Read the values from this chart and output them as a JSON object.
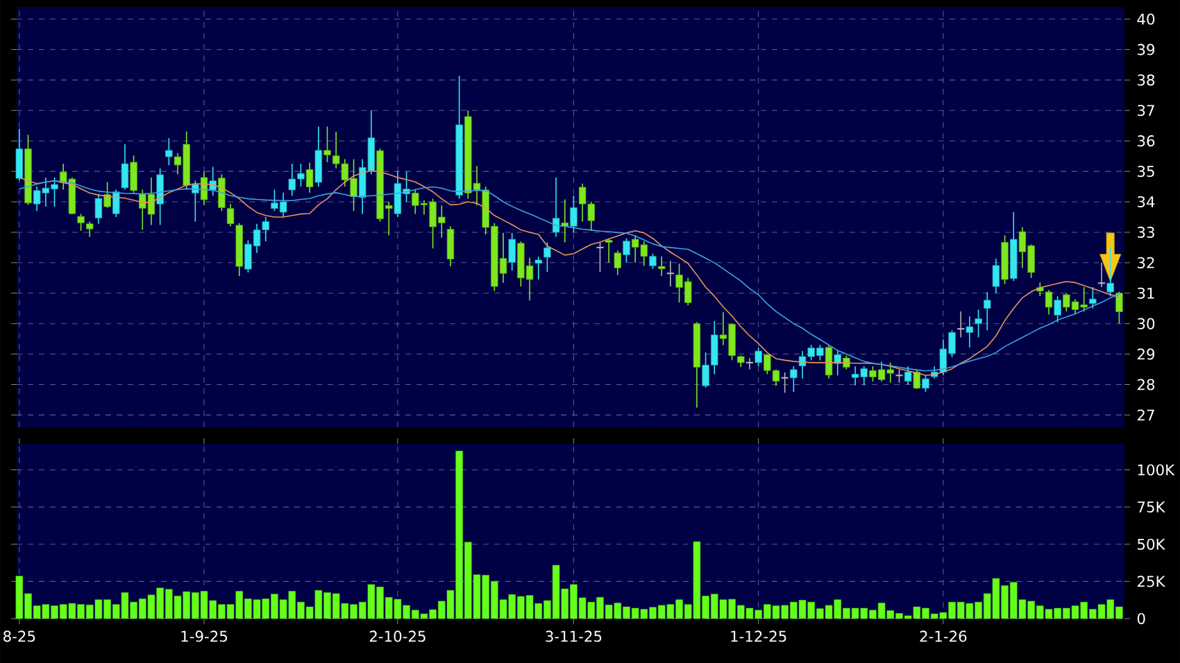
{
  "chart_data": [
    {
      "type": "candlestick",
      "categories": [
        null,
        null,
        null,
        null,
        null,
        null,
        null,
        null,
        null,
        null,
        null,
        null,
        null,
        null,
        null,
        null,
        null,
        null,
        null,
        null,
        null,
        null,
        null,
        null,
        null,
        null,
        null,
        null,
        null,
        null,
        null,
        null,
        null,
        null,
        null,
        null,
        null,
        null,
        null,
        null,
        null,
        null,
        null,
        null,
        null,
        null,
        null,
        null,
        null,
        null,
        null,
        null,
        null,
        null,
        null,
        null,
        null,
        null,
        null,
        null,
        null,
        null,
        null,
        null,
        null,
        null,
        null,
        null,
        null,
        null,
        null,
        null,
        null,
        null,
        null,
        null,
        null,
        null,
        null,
        null,
        null,
        null,
        null,
        null,
        null,
        null,
        null,
        null,
        null,
        null,
        null,
        null,
        null,
        null,
        null,
        null,
        null,
        null,
        null,
        null,
        null,
        null,
        null,
        null,
        null,
        null,
        null,
        null,
        null,
        null,
        null,
        null,
        null,
        null,
        null,
        null,
        null,
        null,
        null,
        null,
        null,
        null,
        null,
        null,
        null,
        null
      ],
      "ohlc": [
        [
          34.77,
          36.4,
          34.7,
          35.74
        ],
        [
          35.74,
          36.2,
          33.9,
          33.96
        ],
        [
          33.93,
          34.5,
          33.7,
          34.37
        ],
        [
          34.29,
          34.8,
          33.84,
          34.45
        ],
        [
          34.42,
          34.8,
          33.84,
          34.57
        ],
        [
          34.98,
          35.25,
          34.4,
          34.63
        ],
        [
          34.75,
          34.8,
          33.6,
          33.61
        ],
        [
          33.52,
          33.6,
          33.05,
          33.31
        ],
        [
          33.28,
          33.35,
          32.85,
          33.11
        ],
        [
          33.47,
          34.27,
          33.28,
          34.11
        ],
        [
          34.24,
          34.65,
          33.8,
          33.84
        ],
        [
          33.61,
          34.4,
          33.5,
          34.33
        ],
        [
          34.46,
          35.89,
          34.4,
          35.25
        ],
        [
          35.3,
          35.52,
          34.3,
          34.37
        ],
        [
          34.25,
          34.4,
          33.08,
          33.79
        ],
        [
          34.25,
          34.8,
          33.24,
          33.59
        ],
        [
          33.93,
          35.1,
          33.24,
          34.89
        ],
        [
          35.48,
          36.09,
          35.2,
          35.69
        ],
        [
          35.48,
          35.6,
          34.9,
          35.21
        ],
        [
          35.89,
          36.31,
          34.4,
          34.54
        ],
        [
          34.29,
          34.7,
          33.35,
          34.57
        ],
        [
          34.8,
          35.0,
          33.9,
          34.07
        ],
        [
          34.39,
          35.15,
          34.2,
          34.69
        ],
        [
          34.78,
          34.9,
          33.7,
          33.81
        ],
        [
          33.78,
          33.93,
          33.2,
          33.28
        ],
        [
          33.23,
          33.3,
          31.56,
          31.88
        ],
        [
          31.79,
          32.74,
          31.68,
          32.61
        ],
        [
          32.55,
          33.28,
          32.32,
          33.08
        ],
        [
          33.08,
          33.5,
          32.7,
          33.35
        ],
        [
          33.78,
          34.4,
          33.7,
          33.96
        ],
        [
          33.66,
          34.3,
          33.5,
          34.0
        ],
        [
          34.39,
          35.25,
          34.2,
          34.75
        ],
        [
          34.75,
          35.25,
          34.5,
          34.93
        ],
        [
          35.06,
          35.28,
          34.3,
          34.49
        ],
        [
          34.64,
          36.47,
          34.5,
          35.69
        ],
        [
          35.69,
          36.47,
          35.3,
          35.54
        ],
        [
          35.51,
          36.3,
          35.1,
          35.25
        ],
        [
          35.25,
          35.4,
          34.5,
          34.72
        ],
        [
          34.77,
          35.4,
          33.7,
          34.17
        ],
        [
          34.14,
          35.4,
          33.6,
          35.13
        ],
        [
          35.02,
          37.0,
          34.9,
          36.1
        ],
        [
          35.68,
          35.75,
          33.35,
          33.44
        ],
        [
          33.88,
          34.0,
          32.9,
          33.78
        ],
        [
          33.61,
          35.0,
          33.5,
          34.6
        ],
        [
          34.26,
          35.0,
          34.0,
          34.42
        ],
        [
          34.29,
          34.4,
          33.6,
          33.88
        ],
        [
          33.95,
          34.05,
          33.58,
          33.9
        ],
        [
          34.0,
          34.1,
          32.47,
          33.18
        ],
        [
          33.5,
          33.88,
          32.82,
          33.31
        ],
        [
          33.1,
          33.2,
          31.88,
          32.12
        ],
        [
          34.22,
          38.14,
          34.1,
          36.53
        ],
        [
          36.8,
          37.0,
          34.1,
          34.29
        ],
        [
          34.61,
          35.18,
          33.88,
          34.39
        ],
        [
          34.39,
          34.5,
          32.93,
          33.16
        ],
        [
          33.2,
          33.3,
          31.07,
          31.22
        ],
        [
          32.14,
          32.98,
          31.34,
          31.65
        ],
        [
          32.01,
          32.98,
          31.74,
          32.77
        ],
        [
          32.64,
          32.7,
          31.22,
          31.5
        ],
        [
          31.9,
          32.17,
          30.76,
          31.45
        ],
        [
          31.98,
          32.2,
          31.45,
          32.09
        ],
        [
          32.18,
          32.67,
          31.7,
          32.49
        ],
        [
          33.0,
          34.8,
          32.85,
          33.46
        ],
        [
          33.31,
          34.08,
          32.67,
          33.2
        ],
        [
          33.2,
          34.2,
          33.0,
          33.81
        ],
        [
          34.48,
          34.6,
          33.35,
          33.93
        ],
        [
          33.93,
          34.0,
          33.05,
          33.38
        ],
        [
          32.5,
          32.67,
          31.7,
          32.5
        ],
        [
          32.74,
          32.8,
          32.0,
          32.67
        ],
        [
          32.32,
          32.4,
          31.6,
          31.83
        ],
        [
          32.26,
          32.8,
          32.0,
          32.71
        ],
        [
          32.77,
          32.9,
          32.0,
          32.51
        ],
        [
          32.59,
          32.7,
          31.9,
          32.21
        ],
        [
          31.9,
          32.3,
          31.8,
          32.21
        ],
        [
          31.88,
          32.21,
          31.56,
          31.8
        ],
        [
          31.65,
          32.06,
          31.22,
          31.65
        ],
        [
          31.6,
          31.97,
          30.69,
          31.19
        ],
        [
          31.38,
          31.5,
          30.6,
          30.69
        ],
        [
          30.0,
          30.05,
          27.24,
          28.57
        ],
        [
          27.96,
          29.05,
          27.9,
          28.64
        ],
        [
          28.64,
          30.08,
          28.34,
          29.63
        ],
        [
          29.63,
          30.38,
          29.3,
          29.51
        ],
        [
          29.98,
          30.0,
          28.8,
          28.95
        ],
        [
          28.92,
          28.95,
          28.57,
          28.72
        ],
        [
          28.72,
          28.87,
          28.5,
          28.72
        ],
        [
          28.72,
          29.2,
          28.6,
          29.1
        ],
        [
          28.98,
          29.0,
          28.34,
          28.46
        ],
        [
          28.46,
          28.5,
          27.96,
          28.11
        ],
        [
          28.22,
          28.4,
          27.73,
          28.22
        ],
        [
          28.22,
          28.6,
          27.76,
          28.49
        ],
        [
          28.61,
          29.1,
          28.2,
          28.92
        ],
        [
          28.92,
          29.3,
          28.8,
          29.2
        ],
        [
          28.95,
          29.3,
          28.8,
          29.2
        ],
        [
          29.22,
          29.3,
          28.2,
          28.31
        ],
        [
          28.69,
          29.1,
          28.3,
          28.98
        ],
        [
          28.87,
          28.95,
          28.5,
          28.57
        ],
        [
          28.23,
          28.6,
          27.97,
          28.34
        ],
        [
          28.25,
          28.6,
          27.97,
          28.52
        ],
        [
          28.46,
          28.6,
          28.1,
          28.25
        ],
        [
          28.49,
          28.75,
          28.1,
          28.16
        ],
        [
          28.49,
          28.72,
          28.06,
          28.37
        ],
        [
          28.3,
          28.5,
          28.06,
          28.3
        ],
        [
          28.11,
          28.6,
          28.0,
          28.41
        ],
        [
          28.41,
          28.5,
          27.85,
          27.88
        ],
        [
          27.88,
          28.3,
          27.76,
          28.19
        ],
        [
          28.26,
          28.6,
          28.2,
          28.41
        ],
        [
          28.41,
          29.48,
          28.3,
          29.17
        ],
        [
          29.02,
          29.78,
          28.9,
          29.71
        ],
        [
          29.83,
          30.4,
          29.55,
          29.83
        ],
        [
          29.71,
          30.24,
          29.22,
          29.9
        ],
        [
          30.0,
          30.46,
          29.55,
          30.16
        ],
        [
          30.5,
          31.03,
          29.78,
          30.77
        ],
        [
          31.22,
          32.14,
          31.0,
          31.91
        ],
        [
          32.67,
          32.9,
          31.3,
          31.45
        ],
        [
          31.48,
          33.66,
          31.4,
          32.77
        ],
        [
          33.02,
          33.17,
          31.83,
          32.36
        ],
        [
          32.56,
          32.6,
          31.5,
          31.68
        ],
        [
          31.18,
          31.35,
          30.9,
          31.07
        ],
        [
          31.04,
          31.1,
          30.3,
          30.54
        ],
        [
          30.28,
          30.9,
          30.04,
          30.77
        ],
        [
          30.95,
          31.0,
          30.4,
          30.54
        ],
        [
          30.72,
          30.8,
          30.3,
          30.46
        ],
        [
          30.62,
          31.2,
          30.4,
          30.54
        ],
        [
          30.66,
          31.2,
          30.5,
          30.81
        ],
        [
          31.33,
          32.0,
          31.2,
          31.33
        ],
        [
          31.04,
          32.52,
          30.9,
          31.33
        ],
        [
          31.0,
          31.05,
          30.0,
          30.39
        ]
      ],
      "colors": [
        "#33e6f2",
        "#7ee81e",
        "#33e6f2",
        "#33e6f2",
        "#33e6f2",
        "#7ee81e",
        "#7ee81e",
        "#7ee81e",
        "#7ee81e",
        "#33e6f2",
        "#7ee81e",
        "#33e6f2",
        "#33e6f2",
        "#7ee81e",
        "#7ee81e",
        "#7ee81e",
        "#33e6f2",
        "#33e6f2",
        "#7ee81e",
        "#7ee81e",
        "#33e6f2",
        "#7ee81e",
        "#33e6f2",
        "#7ee81e",
        "#7ee81e",
        "#7ee81e",
        "#33e6f2",
        "#33e6f2",
        "#33e6f2",
        "#33e6f2",
        "#33e6f2",
        "#33e6f2",
        "#33e6f2",
        "#7ee81e",
        "#33e6f2",
        "#7ee81e",
        "#7ee81e",
        "#7ee81e",
        "#7ee81e",
        "#33e6f2",
        "#33e6f2",
        "#7ee81e",
        "#7ee81e",
        "#33e6f2",
        "#33e6f2",
        "#7ee81e",
        "#7ee81e",
        "#7ee81e",
        "#7ee81e",
        "#7ee81e",
        "#33e6f2",
        "#7ee81e",
        "#7ee81e",
        "#7ee81e",
        "#7ee81e",
        "#7ee81e",
        "#33e6f2",
        "#7ee81e",
        "#7ee81e",
        "#33e6f2",
        "#33e6f2",
        "#33e6f2",
        "#7ee81e",
        "#33e6f2",
        "#7ee81e",
        "#7ee81e",
        "#b4b4b4",
        "#7ee81e",
        "#7ee81e",
        "#33e6f2",
        "#7ee81e",
        "#7ee81e",
        "#33e6f2",
        "#7ee81e",
        "#b4b4b4",
        "#7ee81e",
        "#7ee81e",
        "#7ee81e",
        "#33e6f2",
        "#33e6f2",
        "#7ee81e",
        "#7ee81e",
        "#7ee81e",
        "#b4b4b4",
        "#33e6f2",
        "#7ee81e",
        "#7ee81e",
        "#b4b4b4",
        "#33e6f2",
        "#33e6f2",
        "#33e6f2",
        "#33e6f2",
        "#7ee81e",
        "#33e6f2",
        "#7ee81e",
        "#33e6f2",
        "#33e6f2",
        "#7ee81e",
        "#7ee81e",
        "#7ee81e",
        "#b4b4b4",
        "#33e6f2",
        "#7ee81e",
        "#33e6f2",
        "#33e6f2",
        "#33e6f2",
        "#33e6f2",
        "#b4b4b4",
        "#33e6f2",
        "#33e6f2",
        "#33e6f2",
        "#33e6f2",
        "#7ee81e",
        "#33e6f2",
        "#7ee81e",
        "#7ee81e",
        "#7ee81e",
        "#7ee81e",
        "#33e6f2",
        "#7ee81e",
        "#7ee81e",
        "#7ee81e",
        "#33e6f2",
        "#b4b4b4",
        "#33e6f2",
        "#7ee81e"
      ],
      "series": [
        {
          "type": "line",
          "color": "#e8955a",
          "values": [
            34.8,
            34.69,
            34.6,
            34.65,
            34.69,
            34.63,
            34.57,
            34.43,
            34.29,
            34.22,
            34.18,
            34.15,
            34.12,
            34.05,
            33.98,
            33.98,
            34.15,
            34.3,
            34.42,
            34.55,
            34.6,
            34.58,
            34.57,
            34.45,
            34.3,
            34.1,
            33.85,
            33.65,
            33.55,
            33.5,
            33.5,
            33.55,
            33.6,
            33.62,
            33.9,
            34.1,
            34.4,
            34.65,
            34.85,
            34.95,
            35.02,
            34.98,
            34.9,
            34.8,
            34.73,
            34.65,
            34.5,
            34.33,
            34.1,
            33.9,
            33.92,
            34.0,
            33.95,
            33.8,
            33.55,
            33.4,
            33.25,
            33.08,
            33.0,
            32.93,
            32.55,
            32.4,
            32.25,
            32.3,
            32.45,
            32.6,
            32.68,
            32.78,
            32.88,
            32.98,
            33.05,
            32.98,
            32.8,
            32.55,
            32.35,
            32.17,
            31.98,
            31.6,
            31.2,
            30.9,
            30.55,
            30.25,
            29.9,
            29.6,
            29.35,
            29.05,
            28.85,
            28.8,
            28.76,
            28.74,
            28.72,
            28.72,
            28.72,
            28.72,
            28.71,
            28.7,
            28.7,
            28.69,
            28.66,
            28.6,
            28.52,
            28.45,
            28.38,
            28.3,
            28.33,
            28.41,
            28.52,
            28.7,
            28.85,
            29.05,
            29.25,
            29.6,
            30.1,
            30.5,
            30.85,
            31.05,
            31.18,
            31.25,
            31.32,
            31.38,
            31.35,
            31.25,
            31.15,
            31.05,
            30.95,
            30.9
          ]
        },
        {
          "type": "line",
          "color": "#3aa4e8",
          "values": [
            34.42,
            34.5,
            34.58,
            34.65,
            34.69,
            34.66,
            34.62,
            34.52,
            34.42,
            34.35,
            34.32,
            34.3,
            34.28,
            34.27,
            34.26,
            34.28,
            34.32,
            34.36,
            34.4,
            34.43,
            34.42,
            34.4,
            34.38,
            34.3,
            34.2,
            34.15,
            34.1,
            34.08,
            34.06,
            34.05,
            34.04,
            34.04,
            34.08,
            34.11,
            34.2,
            34.26,
            34.3,
            34.24,
            34.17,
            34.18,
            34.2,
            34.22,
            34.25,
            34.28,
            34.33,
            34.4,
            34.46,
            34.49,
            34.45,
            34.36,
            34.34,
            34.36,
            34.37,
            34.38,
            34.2,
            34.0,
            33.85,
            33.72,
            33.6,
            33.48,
            33.35,
            33.22,
            33.2,
            33.15,
            33.1,
            33.07,
            33.04,
            33.02,
            32.99,
            32.97,
            32.88,
            32.75,
            32.62,
            32.53,
            32.5,
            32.47,
            32.44,
            32.3,
            32.15,
            32.0,
            31.8,
            31.6,
            31.4,
            31.15,
            30.95,
            30.65,
            30.4,
            30.2,
            30.0,
            29.85,
            29.65,
            29.48,
            29.3,
            29.12,
            29.0,
            28.88,
            28.76,
            28.7,
            28.66,
            28.62,
            28.57,
            28.52,
            28.48,
            28.45,
            28.47,
            28.51,
            28.58,
            28.68,
            28.77,
            28.85,
            28.93,
            29.05,
            29.25,
            29.4,
            29.55,
            29.7,
            29.85,
            29.97,
            30.12,
            30.22,
            30.32,
            30.45,
            30.58,
            30.7,
            30.85,
            30.95
          ]
        }
      ],
      "ylim": [
        26.6,
        40.4
      ],
      "yticks": [
        27,
        28,
        29,
        30,
        31,
        32,
        33,
        34,
        35,
        36,
        37,
        38,
        39,
        40
      ],
      "grid": true,
      "tick_labels": "y"
    },
    {
      "type": "bar",
      "categories": [
        "8-25",
        null,
        null,
        null,
        null,
        null,
        null,
        null,
        null,
        null,
        null,
        null,
        null,
        null,
        null,
        null,
        null,
        null,
        null,
        null,
        null,
        "1-9-25",
        null,
        null,
        null,
        null,
        null,
        null,
        null,
        null,
        null,
        null,
        null,
        null,
        null,
        null,
        null,
        null,
        null,
        null,
        null,
        null,
        null,
        "2-10-25",
        null,
        null,
        null,
        null,
        null,
        null,
        null,
        null,
        null,
        null,
        null,
        null,
        null,
        null,
        null,
        null,
        null,
        null,
        null,
        "3-11-25",
        null,
        null,
        null,
        null,
        null,
        null,
        null,
        null,
        null,
        null,
        null,
        null,
        null,
        null,
        null,
        null,
        null,
        null,
        null,
        null,
        "1-12-25",
        null,
        null,
        null,
        null,
        null,
        null,
        null,
        null,
        null,
        null,
        null,
        null,
        null,
        null,
        null,
        null,
        null,
        null,
        null,
        null,
        "2-1-26",
        null,
        null,
        null,
        null,
        null,
        null,
        null,
        null,
        null,
        null,
        null,
        null,
        null,
        null,
        null,
        null,
        null,
        null,
        null,
        null
      ],
      "values": [
        28600,
        16800,
        8600,
        9500,
        8600,
        9500,
        10200,
        9500,
        9200,
        12700,
        12700,
        9500,
        17500,
        11100,
        13300,
        15900,
        20600,
        19700,
        15200,
        18100,
        17500,
        18400,
        12100,
        9500,
        9500,
        18400,
        13300,
        12700,
        13300,
        16500,
        12700,
        18400,
        11100,
        7900,
        19000,
        17500,
        16800,
        10200,
        9500,
        11100,
        22900,
        21300,
        14300,
        13000,
        8900,
        5700,
        3200,
        6000,
        11700,
        19000,
        112700,
        51400,
        29500,
        29200,
        25100,
        12700,
        16200,
        14900,
        15600,
        10200,
        12100,
        35900,
        20000,
        22900,
        14000,
        11100,
        14300,
        9200,
        10500,
        7900,
        7000,
        6300,
        7600,
        8900,
        9500,
        12700,
        9500,
        51700,
        15200,
        16500,
        12700,
        13000,
        8900,
        7000,
        5700,
        9500,
        8600,
        8900,
        11100,
        12400,
        11100,
        6700,
        8900,
        12700,
        7000,
        7000,
        7000,
        5700,
        10500,
        5400,
        3500,
        1900,
        7900,
        7000,
        3200,
        4100,
        11100,
        11100,
        10200,
        11100,
        16800,
        27000,
        22200,
        24400,
        12700,
        11700,
        8600,
        6300,
        7000,
        7000,
        8600,
        11100,
        6300,
        9500,
        12700,
        7900
      ],
      "color": "#66ff1a",
      "ylim": [
        0,
        117500
      ],
      "yticks": [
        0,
        {
          "value": 25000,
          "label": "25K"
        },
        {
          "value": 50000,
          "label": "50K"
        },
        {
          "value": 75000,
          "label": "75K"
        },
        {
          "value": 100000,
          "label": "100K"
        }
      ],
      "grid": true
    }
  ]
}
